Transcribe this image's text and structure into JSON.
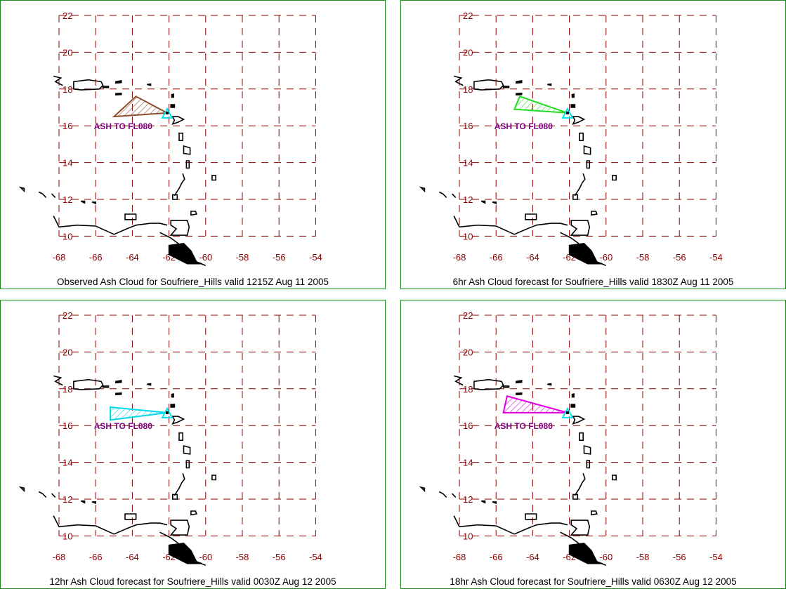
{
  "map_axes": {
    "lat_ticks": [
      22,
      20,
      18,
      16,
      14,
      12,
      10
    ],
    "lon_ticks": [
      -68,
      -66,
      -64,
      -62,
      -60,
      -58,
      -56,
      -54
    ],
    "grid_color": "#8b0000",
    "tick_label_color": "#8b0000",
    "grid_style": "dashed"
  },
  "ash_label_color": "#800080",
  "volcano_marker_color": "#00e5ee",
  "panels": [
    {
      "caption": "Observed Ash Cloud for Soufriere_Hills valid 1215Z Aug 11 2005",
      "ash_label": "ASH TO FL080",
      "cloud_color": "#8b4a2b",
      "cloud_polygon": [
        [
          -62.1,
          16.7
        ],
        [
          -63.8,
          17.6
        ],
        [
          -65.0,
          16.5
        ]
      ]
    },
    {
      "caption": "6hr Ash Cloud forecast for Soufriere_Hills valid 1830Z Aug 11 2005",
      "ash_label": "ASH TO FL080",
      "cloud_color": "#22dd22",
      "cloud_polygon": [
        [
          -62.1,
          16.7
        ],
        [
          -64.7,
          17.6
        ],
        [
          -65.0,
          16.9
        ]
      ]
    },
    {
      "caption": "12hr Ash Cloud forecast for Soufriere_Hills valid 0030Z Aug 12 2005",
      "ash_label": "ASH TO FL080",
      "cloud_color": "#00d8e8",
      "cloud_polygon": [
        [
          -62.1,
          16.7
        ],
        [
          -65.2,
          17.0
        ],
        [
          -65.2,
          16.3
        ]
      ]
    },
    {
      "caption": "18hr Ash Cloud forecast for Soufriere_Hills valid 0630Z Aug 12 2005",
      "ash_label": "ASH TO FL080",
      "cloud_color": "#e000e0",
      "cloud_polygon": [
        [
          -62.1,
          16.7
        ],
        [
          -65.4,
          17.6
        ],
        [
          -65.6,
          16.7
        ]
      ]
    }
  ]
}
